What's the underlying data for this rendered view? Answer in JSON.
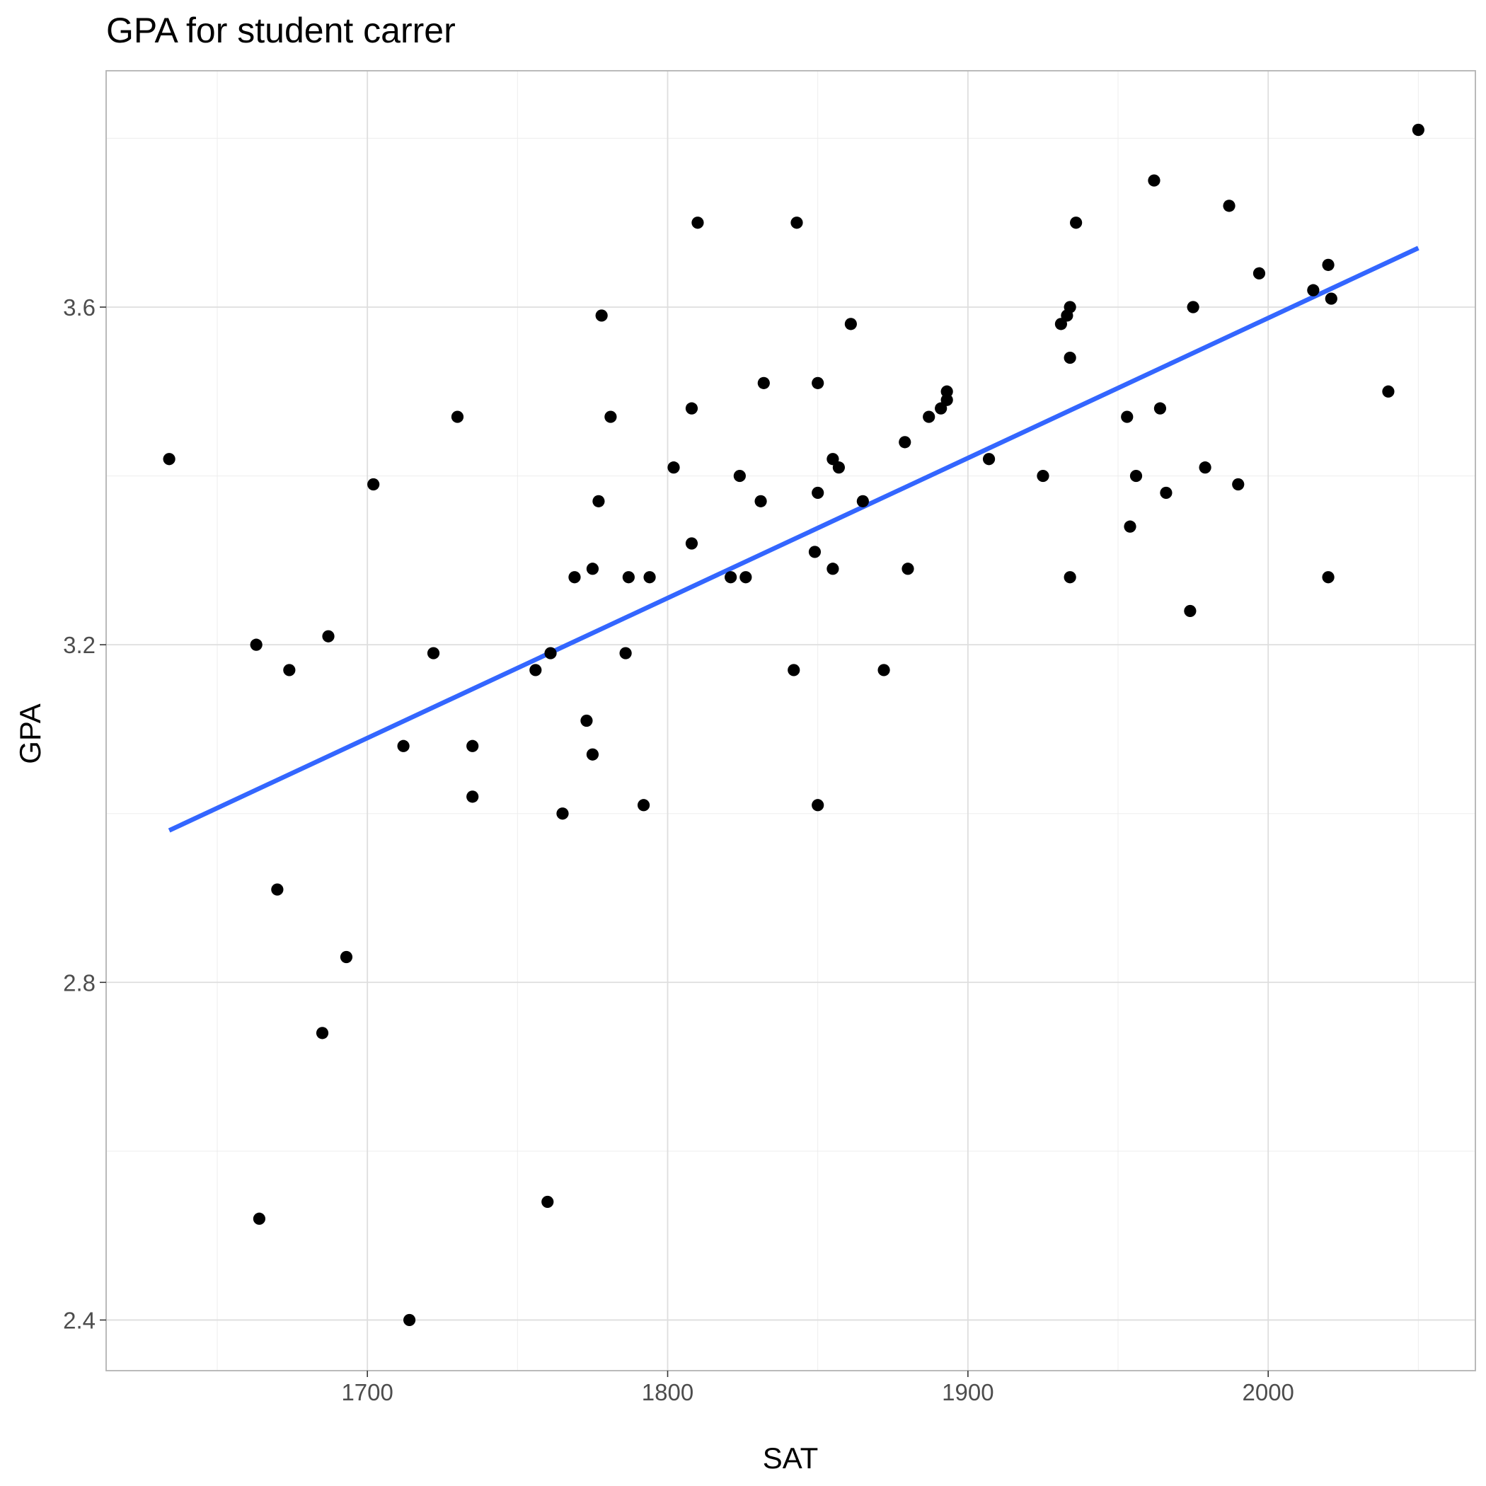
{
  "chart_data": {
    "type": "scatter",
    "title": "GPA for student carrer",
    "xlabel": "SAT",
    "ylabel": "GPA",
    "xlim": [
      1613,
      2069
    ],
    "ylim": [
      2.34,
      3.88
    ],
    "x_ticks": [
      1700,
      1800,
      1900,
      2000
    ],
    "x_tick_labels": [
      "1700",
      "1800",
      "1900",
      "2000"
    ],
    "y_ticks": [
      2.4,
      2.8,
      3.2,
      3.6
    ],
    "y_tick_labels": [
      "2.4",
      "2.8",
      "3.2",
      "3.6"
    ],
    "grid": true,
    "legend": "none",
    "colors": {
      "points": "#000000",
      "fit_line": "#3366ff",
      "grid": "#dedede"
    },
    "points": [
      [
        1634,
        3.42
      ],
      [
        1663,
        3.2
      ],
      [
        1664,
        2.52
      ],
      [
        1670,
        2.91
      ],
      [
        1674,
        3.17
      ],
      [
        1685,
        2.74
      ],
      [
        1687,
        3.21
      ],
      [
        1693,
        2.83
      ],
      [
        1702,
        3.39
      ],
      [
        1712,
        3.08
      ],
      [
        1714,
        2.4
      ],
      [
        1722,
        3.19
      ],
      [
        1730,
        3.47
      ],
      [
        1735,
        3.08
      ],
      [
        1735,
        3.02
      ],
      [
        1756,
        3.17
      ],
      [
        1761,
        3.19
      ],
      [
        1760,
        2.54
      ],
      [
        1765,
        3.0
      ],
      [
        1769,
        3.28
      ],
      [
        1773,
        3.11
      ],
      [
        1775,
        3.29
      ],
      [
        1775,
        3.07
      ],
      [
        1777,
        3.37
      ],
      [
        1778,
        3.59
      ],
      [
        1781,
        3.47
      ],
      [
        1786,
        3.19
      ],
      [
        1787,
        3.28
      ],
      [
        1792,
        3.01
      ],
      [
        1794,
        3.28
      ],
      [
        1802,
        3.41
      ],
      [
        1808,
        3.48
      ],
      [
        1808,
        3.32
      ],
      [
        1810,
        3.7
      ],
      [
        1821,
        3.28
      ],
      [
        1824,
        3.4
      ],
      [
        1826,
        3.28
      ],
      [
        1831,
        3.37
      ],
      [
        1832,
        3.51
      ],
      [
        1842,
        3.17
      ],
      [
        1843,
        3.7
      ],
      [
        1849,
        3.31
      ],
      [
        1850,
        3.01
      ],
      [
        1850,
        3.38
      ],
      [
        1850,
        3.51
      ],
      [
        1855,
        3.42
      ],
      [
        1855,
        3.29
      ],
      [
        1857,
        3.41
      ],
      [
        1861,
        3.58
      ],
      [
        1865,
        3.37
      ],
      [
        1872,
        3.17
      ],
      [
        1879,
        3.44
      ],
      [
        1880,
        3.29
      ],
      [
        1887,
        3.47
      ],
      [
        1891,
        3.48
      ],
      [
        1893,
        3.5
      ],
      [
        1893,
        3.49
      ],
      [
        1907,
        3.42
      ],
      [
        1925,
        3.4
      ],
      [
        1931,
        3.58
      ],
      [
        1933,
        3.59
      ],
      [
        1934,
        3.6
      ],
      [
        1934,
        3.54
      ],
      [
        1934,
        3.28
      ],
      [
        1936,
        3.7
      ],
      [
        1953,
        3.47
      ],
      [
        1954,
        3.34
      ],
      [
        1956,
        3.4
      ],
      [
        1962,
        3.75
      ],
      [
        1964,
        3.48
      ],
      [
        1966,
        3.38
      ],
      [
        1974,
        3.24
      ],
      [
        1975,
        3.6
      ],
      [
        1979,
        3.41
      ],
      [
        1987,
        3.72
      ],
      [
        1990,
        3.39
      ],
      [
        1997,
        3.64
      ],
      [
        2015,
        3.62
      ],
      [
        2020,
        3.65
      ],
      [
        2020,
        3.28
      ],
      [
        2021,
        3.61
      ],
      [
        2040,
        3.5
      ],
      [
        2050,
        3.81
      ]
    ],
    "fit_line": {
      "method": "linear",
      "x": [
        1634,
        2050
      ],
      "y": [
        2.98,
        3.67
      ]
    }
  }
}
